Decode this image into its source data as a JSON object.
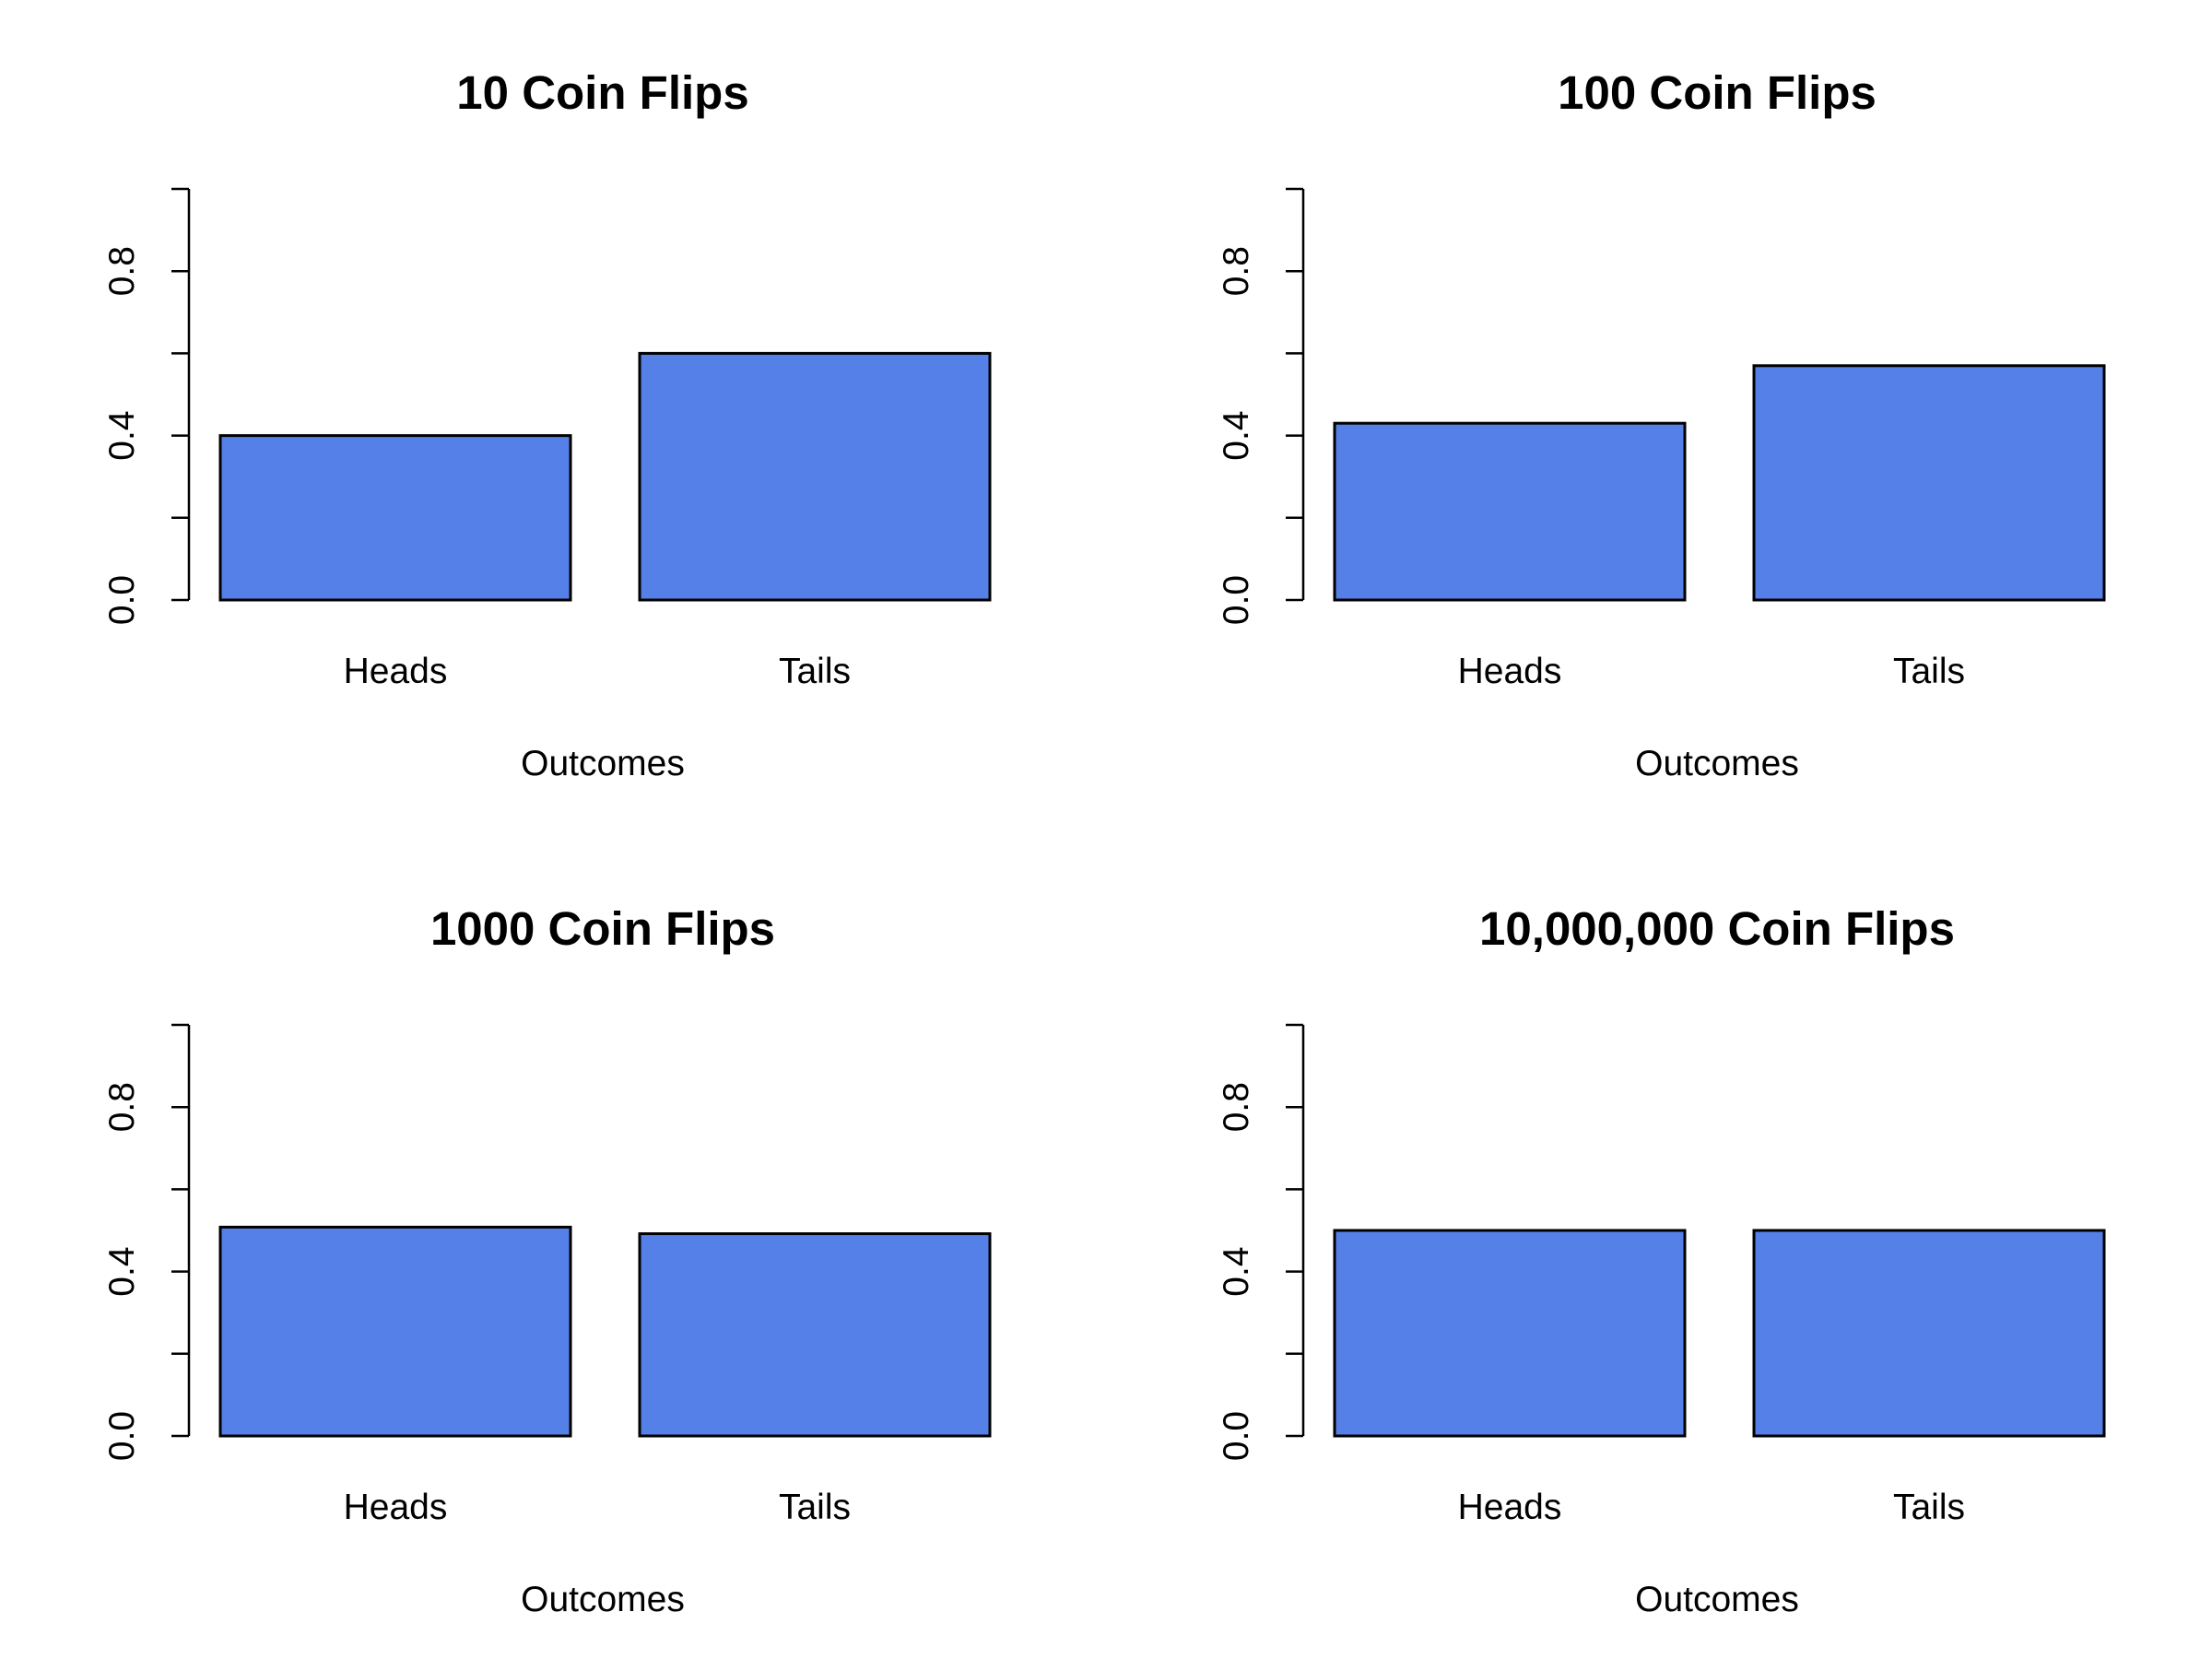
{
  "colors": {
    "bar_fill": "#5480E8",
    "bar_stroke": "#000000",
    "background": "#ffffff"
  },
  "chart_data": [
    {
      "type": "bar",
      "title": "10 Coin Flips",
      "xlabel": "Outcomes",
      "ylabel": "",
      "categories": [
        "Heads",
        "Tails"
      ],
      "values": [
        0.4,
        0.6
      ],
      "ylim": [
        0,
        1
      ],
      "yticks": [
        0.0,
        0.2,
        0.4,
        0.6,
        0.8,
        1.0
      ],
      "ytick_labels": [
        "0.0",
        "",
        "0.4",
        "",
        "0.8",
        ""
      ],
      "grid": false
    },
    {
      "type": "bar",
      "title": "100 Coin Flips",
      "xlabel": "Outcomes",
      "ylabel": "",
      "categories": [
        "Heads",
        "Tails"
      ],
      "values": [
        0.43,
        0.57
      ],
      "ylim": [
        0,
        1
      ],
      "yticks": [
        0.0,
        0.2,
        0.4,
        0.6,
        0.8,
        1.0
      ],
      "ytick_labels": [
        "0.0",
        "",
        "0.4",
        "",
        "0.8",
        ""
      ],
      "grid": false
    },
    {
      "type": "bar",
      "title": "1000 Coin Flips",
      "xlabel": "Outcomes",
      "ylabel": "",
      "categories": [
        "Heads",
        "Tails"
      ],
      "values": [
        0.508,
        0.492
      ],
      "ylim": [
        0,
        1
      ],
      "yticks": [
        0.0,
        0.2,
        0.4,
        0.6,
        0.8,
        1.0
      ],
      "ytick_labels": [
        "0.0",
        "",
        "0.4",
        "",
        "0.8",
        ""
      ],
      "grid": false
    },
    {
      "type": "bar",
      "title": "10,000,000 Coin Flips",
      "xlabel": "Outcomes",
      "ylabel": "",
      "categories": [
        "Heads",
        "Tails"
      ],
      "values": [
        0.5,
        0.5
      ],
      "ylim": [
        0,
        1
      ],
      "yticks": [
        0.0,
        0.2,
        0.4,
        0.6,
        0.8,
        1.0
      ],
      "ytick_labels": [
        "0.0",
        "",
        "0.4",
        "",
        "0.8",
        ""
      ],
      "grid": false
    }
  ]
}
